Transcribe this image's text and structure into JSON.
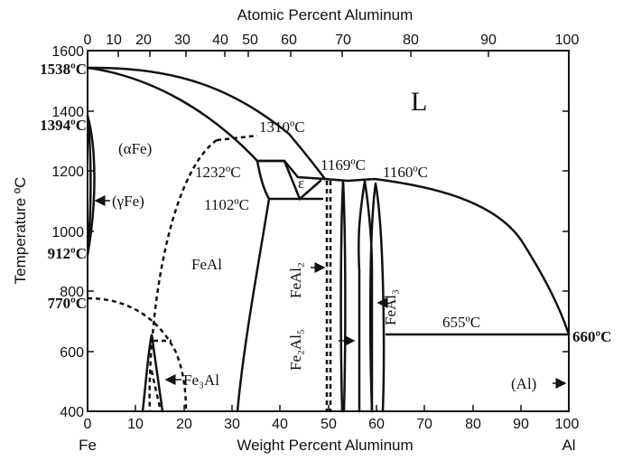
{
  "diagram": {
    "top_axis_title": "Atomic Percent Aluminum",
    "bottom_axis_title": "Weight Percent Aluminum",
    "y_axis_title": "Temperature ºC",
    "top_ticks": [
      "0",
      "10",
      "20",
      "30",
      "40",
      "50",
      "60",
      "70",
      "80",
      "90",
      "100"
    ],
    "bottom_ticks": [
      "0",
      "10",
      "20",
      "30",
      "40",
      "50",
      "60",
      "70",
      "80",
      "90",
      "100"
    ],
    "y_ticks": [
      "400",
      "600",
      "800",
      "1000",
      "1200",
      "1400",
      "1600"
    ],
    "end_left": "Fe",
    "end_right": "Al",
    "temps": {
      "t1538": "1538ºC",
      "t1394": "1394ºC",
      "t912": "912ºC",
      "t770": "770ºC",
      "t660": "660ºC",
      "t1310": "1310ºC",
      "t1232": "1232ºC",
      "t1102": "1102ºC",
      "t1169": "1169ºC",
      "t1160": "1160ºC",
      "t655": "655ºC"
    },
    "phases": {
      "liquid": "L",
      "alpha_fe": "(αFe)",
      "gamma_fe": "(γFe)",
      "feal": "FeAl",
      "epsilon": "ε",
      "fe3al": "Fe₃Al",
      "feal2": "FeAl₂",
      "fe2al5": "Fe₂Al₅",
      "feal3": "FeAl₃",
      "al": "(Al)"
    }
  }
}
